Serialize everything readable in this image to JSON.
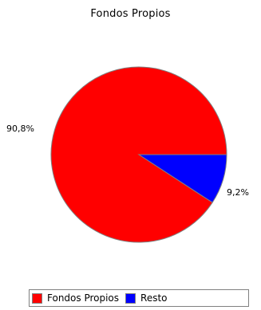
{
  "chart_data": {
    "type": "pie",
    "title": "Fondos Propios",
    "slices": [
      {
        "name": "Fondos Propios",
        "value": 90.8,
        "label": "90,8%",
        "color": "#ff0000"
      },
      {
        "name": "Resto",
        "value": 9.2,
        "label": "9,2%",
        "color": "#0000ff"
      }
    ],
    "legend_position": "bottom"
  }
}
